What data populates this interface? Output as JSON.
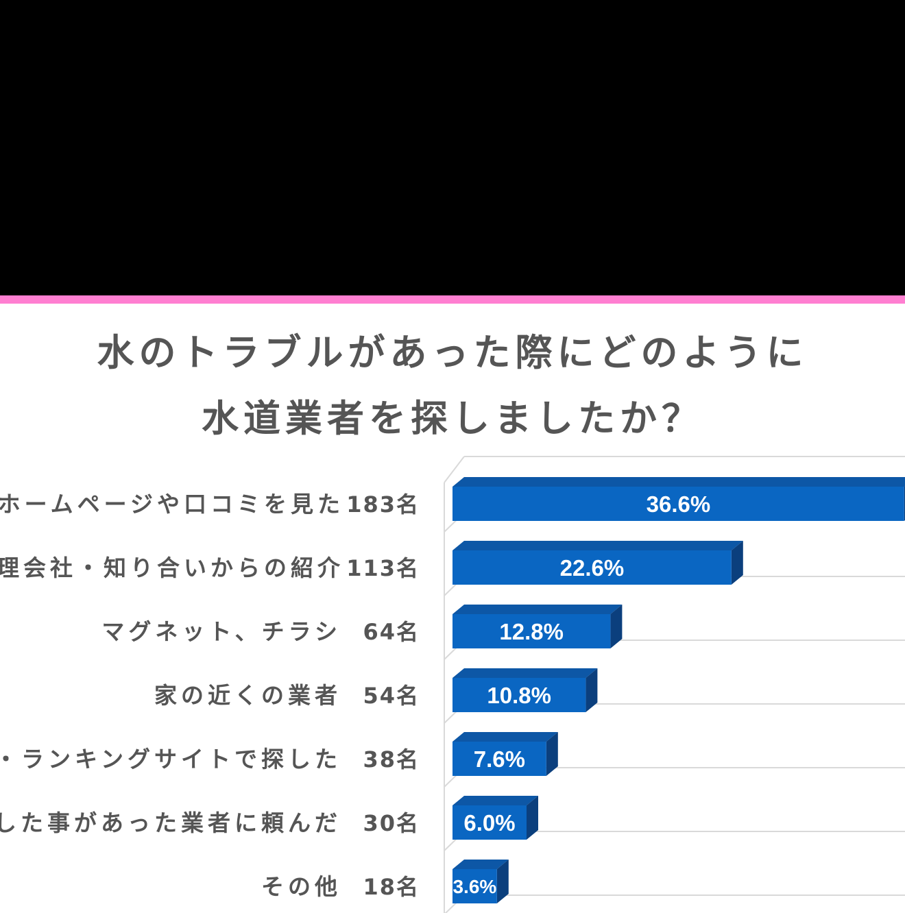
{
  "title_lines": [
    "水のトラブルがあった際にどのように",
    "水道業者を探しましたか？"
  ],
  "colors": {
    "top_band": "#000000",
    "accent_band": "#ff7fd1",
    "bar_front": "#0a66c2",
    "bar_top": "#0d57a6",
    "bar_side": "#0b3f7d",
    "text": "#555555",
    "grid": "#d9d9d9"
  },
  "chart_data": {
    "type": "bar",
    "orientation": "horizontal",
    "title": "水のトラブルがあった際にどのように水道業者を探しましたか？",
    "categories": [
      "ホームページや口コミを見た",
      "理会社・知り合いからの紹介",
      "マグネット、チラシ",
      "家の近くの業者",
      "較・ランキングサイトで探した",
      "用した事があった業者に頼んだ",
      "その他"
    ],
    "counts": [
      "183名",
      "113名",
      "64名",
      "54名",
      "38名",
      "30名",
      "18名"
    ],
    "values": [
      36.6,
      22.6,
      12.8,
      10.8,
      7.6,
      6.0,
      3.6
    ],
    "value_labels": [
      "36.6%",
      "22.6%",
      "12.8%",
      "10.8%",
      "7.6%",
      "6.0%",
      "3.6%"
    ],
    "value_unit": "%",
    "xlim": [
      0,
      50
    ],
    "grid": true,
    "legend": "none"
  }
}
